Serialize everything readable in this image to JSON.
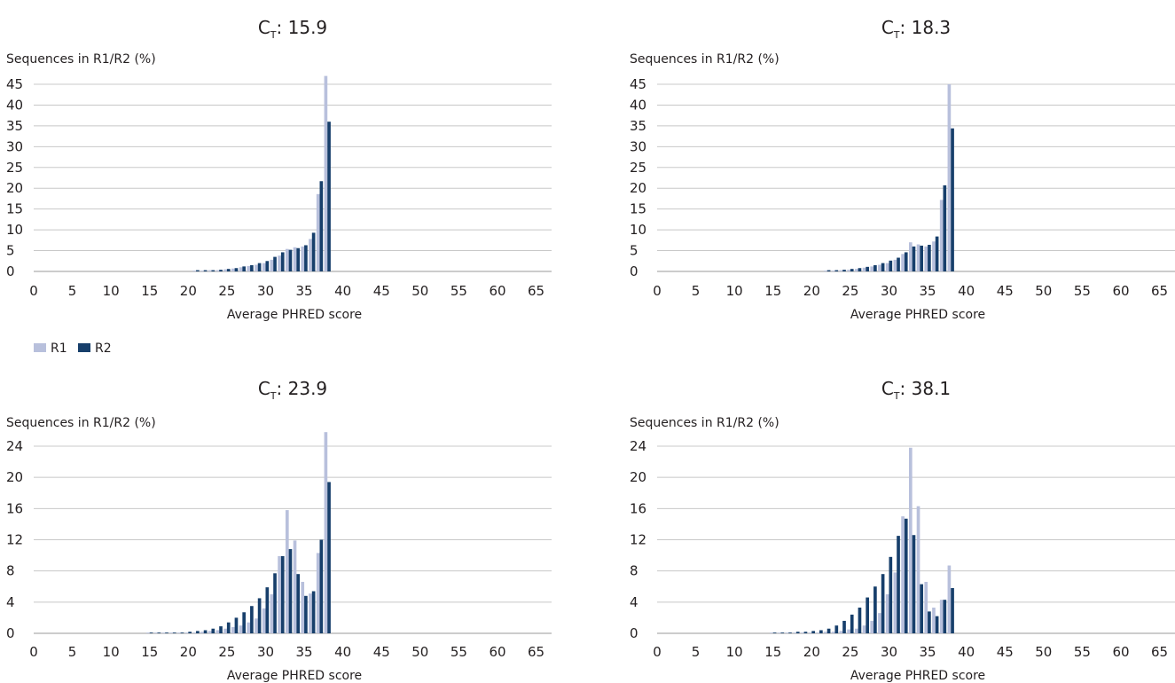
{
  "legend": [
    {
      "name": "R1",
      "color": "#b8c0dc"
    },
    {
      "name": "R2",
      "color": "#173f6b"
    }
  ],
  "chart_data": [
    {
      "type": "bar",
      "title_main": "C",
      "title_sub": "T",
      "title_value": ": 15.9",
      "ylabel": "Sequences in R1/R2 (%)",
      "xlabel": "Average PHRED score",
      "xlim": [
        0,
        67
      ],
      "ylim": [
        0,
        47
      ],
      "xticks": [
        "0",
        "5",
        "10",
        "15",
        "20",
        "25",
        "30",
        "35",
        "40",
        "45",
        "50",
        "55",
        "60",
        "65"
      ],
      "yticks": [
        "0",
        "5",
        "10",
        "15",
        "20",
        "25",
        "30",
        "35",
        "40",
        "45"
      ],
      "grid": true,
      "x": [
        21,
        22,
        23,
        24,
        25,
        26,
        27,
        28,
        29,
        30,
        31,
        32,
        33,
        34,
        35,
        36,
        37,
        38
      ],
      "series": [
        {
          "name": "R1",
          "values": [
            0.2,
            0.2,
            0.3,
            0.3,
            0.5,
            0.7,
            1.0,
            1.3,
            1.6,
            2.0,
            2.8,
            3.8,
            5.4,
            5.8,
            6.0,
            7.8,
            18.6,
            47.0
          ]
        },
        {
          "name": "R2",
          "values": [
            0.3,
            0.3,
            0.3,
            0.4,
            0.6,
            0.8,
            1.2,
            1.5,
            2.0,
            2.5,
            3.5,
            4.6,
            5.2,
            5.6,
            6.3,
            9.3,
            21.7,
            36.0
          ]
        }
      ]
    },
    {
      "type": "bar",
      "title_main": "C",
      "title_sub": "T",
      "title_value": ": 18.3",
      "ylabel": "Sequences in R1/R2 (%)",
      "xlabel": "Average PHRED score",
      "xlim": [
        0,
        67
      ],
      "ylim": [
        0,
        47
      ],
      "xticks": [
        "0",
        "5",
        "10",
        "15",
        "20",
        "25",
        "30",
        "35",
        "40",
        "45",
        "50",
        "55",
        "60",
        "65"
      ],
      "yticks": [
        "0",
        "5",
        "10",
        "15",
        "20",
        "25",
        "30",
        "35",
        "40",
        "45"
      ],
      "grid": true,
      "x": [
        22,
        23,
        24,
        25,
        26,
        27,
        28,
        29,
        30,
        31,
        32,
        33,
        34,
        35,
        36,
        37,
        38
      ],
      "series": [
        {
          "name": "R1",
          "values": [
            0.2,
            0.2,
            0.3,
            0.4,
            0.6,
            0.9,
            1.2,
            1.6,
            2.0,
            2.8,
            4.2,
            7.0,
            6.5,
            6.0,
            7.2,
            17.2,
            45.0
          ]
        },
        {
          "name": "R2",
          "values": [
            0.3,
            0.3,
            0.4,
            0.6,
            0.8,
            1.1,
            1.5,
            2.0,
            2.6,
            3.3,
            4.6,
            6.0,
            6.2,
            6.4,
            8.4,
            20.7,
            34.4
          ]
        }
      ]
    },
    {
      "type": "bar",
      "title_main": "C",
      "title_sub": "T",
      "title_value": ": 23.9",
      "ylabel": "Sequences in R1/R2 (%)",
      "xlabel": "Average PHRED score",
      "xlim": [
        0,
        67
      ],
      "ylim": [
        0,
        26
      ],
      "xticks": [
        "0",
        "5",
        "10",
        "15",
        "20",
        "25",
        "30",
        "35",
        "40",
        "45",
        "50",
        "55",
        "60",
        "65"
      ],
      "yticks": [
        "0",
        "4",
        "8",
        "12",
        "16",
        "20",
        "24"
      ],
      "grid": true,
      "x": [
        15,
        16,
        17,
        18,
        19,
        20,
        21,
        22,
        23,
        24,
        25,
        26,
        27,
        28,
        29,
        30,
        31,
        32,
        33,
        34,
        35,
        36,
        37,
        38
      ],
      "series": [
        {
          "name": "R1",
          "values": [
            0.1,
            0.1,
            0.1,
            0.1,
            0.1,
            0.1,
            0.1,
            0.2,
            0.3,
            0.4,
            0.6,
            0.8,
            1.0,
            1.4,
            1.9,
            3.2,
            5.0,
            9.9,
            15.8,
            11.9,
            6.6,
            5.1,
            10.3,
            25.8
          ]
        },
        {
          "name": "R2",
          "values": [
            0.1,
            0.1,
            0.1,
            0.1,
            0.1,
            0.2,
            0.3,
            0.4,
            0.6,
            0.9,
            1.4,
            2.0,
            2.7,
            3.5,
            4.5,
            5.9,
            7.7,
            9.9,
            10.8,
            7.6,
            4.8,
            5.4,
            12.0,
            19.4
          ]
        }
      ]
    },
    {
      "type": "bar",
      "title_main": "C",
      "title_sub": "T",
      "title_value": ": 38.1",
      "ylabel": "Sequences in R1/R2 (%)",
      "xlabel": "Average PHRED score",
      "xlim": [
        0,
        67
      ],
      "ylim": [
        0,
        26
      ],
      "xticks": [
        "0",
        "5",
        "10",
        "15",
        "20",
        "25",
        "30",
        "35",
        "40",
        "45",
        "50",
        "55",
        "60",
        "65"
      ],
      "yticks": [
        "0",
        "4",
        "8",
        "12",
        "16",
        "20",
        "24"
      ],
      "grid": true,
      "x": [
        15,
        16,
        17,
        18,
        19,
        20,
        21,
        22,
        23,
        24,
        25,
        26,
        27,
        28,
        29,
        30,
        31,
        32,
        33,
        34,
        35,
        36,
        37,
        38
      ],
      "series": [
        {
          "name": "R1",
          "values": [
            0.1,
            0.1,
            0.1,
            0.1,
            0.1,
            0.1,
            0.1,
            0.2,
            0.2,
            0.3,
            0.5,
            0.6,
            1.0,
            1.6,
            2.6,
            5.0,
            7.8,
            15.0,
            23.8,
            16.3,
            6.6,
            3.3,
            4.3,
            8.7
          ]
        },
        {
          "name": "R2",
          "values": [
            0.1,
            0.1,
            0.1,
            0.2,
            0.2,
            0.3,
            0.4,
            0.6,
            1.0,
            1.6,
            2.4,
            3.3,
            4.6,
            6.0,
            7.6,
            9.8,
            12.5,
            14.7,
            12.6,
            6.3,
            2.8,
            2.2,
            4.3,
            5.8
          ]
        }
      ]
    }
  ]
}
